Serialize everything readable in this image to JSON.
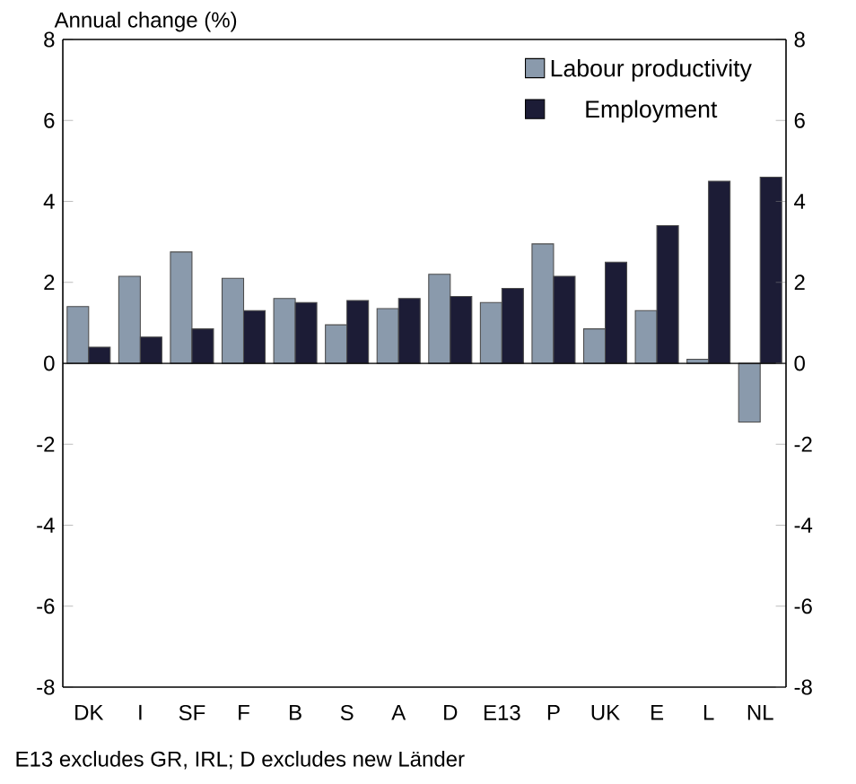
{
  "chart_data": {
    "type": "bar",
    "ylabel": "Annual change (%)",
    "categories": [
      "DK",
      "I",
      "SF",
      "F",
      "B",
      "S",
      "A",
      "D",
      "E13",
      "P",
      "UK",
      "E",
      "L",
      "NL"
    ],
    "series": [
      {
        "name": "Labour productivity",
        "color": "#8a9aac",
        "values": [
          1.4,
          2.15,
          2.75,
          2.1,
          1.6,
          0.95,
          1.35,
          2.2,
          1.5,
          2.95,
          0.85,
          1.3,
          0.1,
          -1.45
        ]
      },
      {
        "name": "Employment",
        "color": "#1c1c36",
        "values": [
          0.4,
          0.65,
          0.85,
          1.3,
          1.5,
          1.55,
          1.6,
          1.65,
          1.85,
          2.15,
          2.5,
          3.4,
          4.5,
          4.6
        ]
      }
    ],
    "ylim": [
      -8,
      8
    ],
    "yticks": [
      -8,
      -6,
      -4,
      -2,
      0,
      2,
      4,
      6,
      8
    ],
    "y2lim": [
      -8,
      8
    ],
    "y2ticks": [
      -8,
      -6,
      -4,
      -2,
      0,
      2,
      4,
      6,
      8
    ],
    "legend": "top right",
    "annotations": [
      "E13 excludes GR, IRL; D excludes new Länder"
    ]
  }
}
